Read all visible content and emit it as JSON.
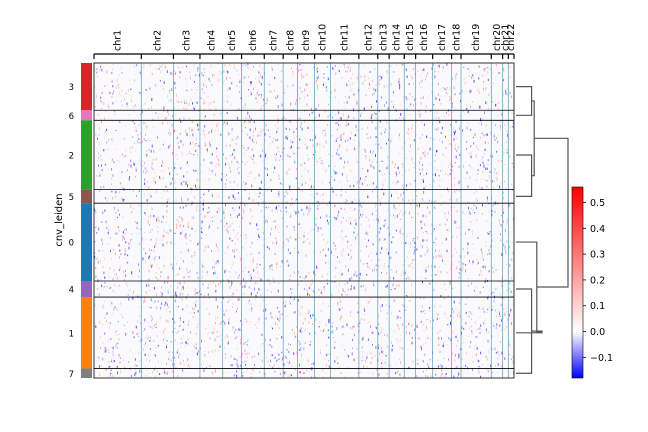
{
  "chart_data": {
    "type": "heatmap",
    "title": "",
    "ylabel": "cnv_leiden",
    "xlabel": "",
    "columns": {
      "labels": [
        "chr1",
        "chr2",
        "chr3",
        "chr4",
        "chr5",
        "chr6",
        "chr7",
        "chr8",
        "chr9",
        "chr10",
        "chr11",
        "chr12",
        "chr13",
        "chr14",
        "chr15",
        "chr16",
        "chr17",
        "chr18",
        "chr19",
        "chr20",
        "chr21",
        "chr22"
      ],
      "weights": [
        12.5,
        8.5,
        7,
        6,
        5,
        6,
        5,
        3.8,
        4.5,
        4.2,
        7.5,
        5,
        3,
        4,
        3,
        4.5,
        5,
        2.5,
        8,
        3,
        1.5,
        1.5
      ]
    },
    "groups": [
      {
        "label": "3",
        "weight": 15,
        "color": "#d62728"
      },
      {
        "label": "6",
        "weight": 3.2,
        "color": "#e377c2"
      },
      {
        "label": "2",
        "weight": 22,
        "color": "#2ca02c"
      },
      {
        "label": "5",
        "weight": 4.3,
        "color": "#8c564b"
      },
      {
        "label": "0",
        "weight": 24.7,
        "color": "#1f77b4"
      },
      {
        "label": "4",
        "weight": 5.1,
        "color": "#9467bd"
      },
      {
        "label": "1",
        "weight": 22.7,
        "color": "#ff7f0e"
      },
      {
        "label": "7",
        "weight": 3.0,
        "color": "#7f7f7f"
      }
    ],
    "dendrogram": {
      "leaves": [
        "3",
        "6",
        "2",
        "5",
        "0",
        "4",
        "1",
        "7"
      ],
      "merges": [
        {
          "a": "3",
          "b": "6",
          "height": 0.3
        },
        {
          "a": "2",
          "b": "5",
          "height": 0.3
        },
        {
          "a": "36",
          "b": "25",
          "height": 0.35
        },
        {
          "a": "4",
          "b": "7",
          "height": 0.3
        },
        {
          "a": "1",
          "b": "47",
          "height": 0.5
        },
        {
          "a": "0",
          "b": "147",
          "height": 0.4
        },
        {
          "a": "3625",
          "b": "0147",
          "height": 1.0
        }
      ]
    },
    "colorbar": {
      "vmin": -0.18,
      "vmax": 0.56,
      "ticks": [
        0.5,
        0.4,
        0.3,
        0.2,
        0.1,
        0.0,
        -0.1
      ],
      "tick_labels": [
        "0.5",
        "0.4",
        "0.3",
        "0.2",
        "0.1",
        "0.0",
        "−0.1"
      ],
      "colormap": "bwr"
    },
    "grid": false
  }
}
